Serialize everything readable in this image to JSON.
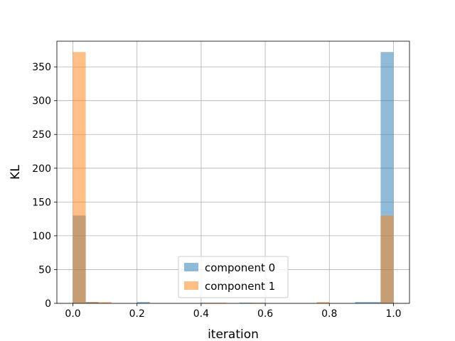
{
  "chart_data": {
    "type": "bar",
    "subtype": "overlapping-histogram",
    "title": "",
    "xlabel": "iteration",
    "ylabel": "KL",
    "xlim": [
      -0.05,
      1.05
    ],
    "ylim": [
      0,
      388
    ],
    "xticks": [
      0.0,
      0.2,
      0.4,
      0.6,
      0.8,
      1.0
    ],
    "xtick_labels": [
      "0.0",
      "0.2",
      "0.4",
      "0.6",
      "0.8",
      "1.0"
    ],
    "yticks": [
      0,
      50,
      100,
      150,
      200,
      250,
      300,
      350
    ],
    "ytick_labels": [
      "0",
      "50",
      "100",
      "150",
      "200",
      "250",
      "300",
      "350"
    ],
    "grid": true,
    "legend_position": "lower-center",
    "bin_edges": [
      0.0,
      0.04,
      0.08,
      0.12,
      0.16,
      0.2,
      0.24,
      0.28,
      0.32,
      0.36,
      0.4,
      0.44,
      0.48,
      0.52,
      0.56,
      0.6,
      0.64,
      0.68,
      0.72,
      0.76,
      0.8,
      0.84,
      0.88,
      0.92,
      0.96,
      1.0
    ],
    "series": [
      {
        "name": "component 0",
        "color": "#1f77b4",
        "alpha": 0.5,
        "values": [
          130,
          2,
          0,
          0,
          0,
          2,
          0,
          0,
          0,
          0,
          0,
          0,
          0,
          1,
          0,
          0,
          0,
          0,
          0,
          0,
          0,
          0,
          2,
          2,
          372
        ]
      },
      {
        "name": "component 1",
        "color": "#ff7f0e",
        "alpha": 0.5,
        "values": [
          372,
          2,
          2,
          0,
          0,
          0,
          0,
          0,
          0,
          0,
          1,
          1,
          0,
          0,
          1,
          0,
          0,
          0,
          0,
          2,
          0,
          0,
          0,
          0,
          130
        ]
      }
    ]
  }
}
